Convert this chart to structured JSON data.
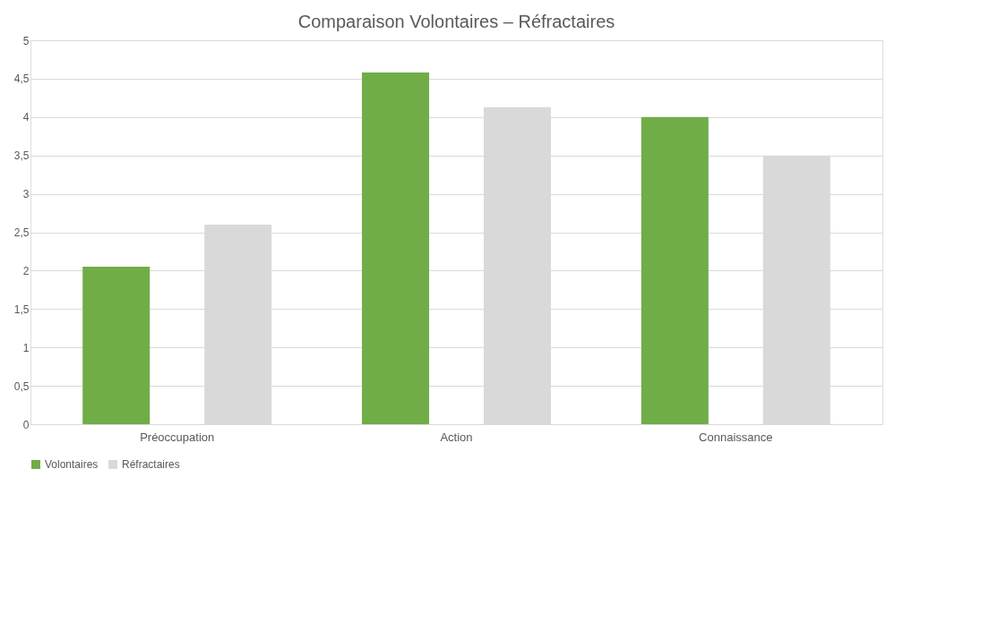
{
  "chart_data": {
    "type": "bar",
    "title": "Comparaison Volontaires – Réfractaires",
    "categories": [
      "Préoccupation",
      "Action",
      "Connaissance"
    ],
    "series": [
      {
        "name": "Volontaires",
        "color": "#70ad47",
        "values": [
          2.05,
          4.58,
          4.0
        ]
      },
      {
        "name": "Réfractaires",
        "color": "#d9d9d9",
        "values": [
          2.6,
          4.13,
          3.5
        ]
      }
    ],
    "ylim": [
      0,
      5
    ],
    "yticks": [
      0,
      {
        "value": 0.5,
        "label": "0,5"
      },
      1,
      {
        "value": 1.5,
        "label": "1,5"
      },
      2,
      {
        "value": 2.5,
        "label": "2,5"
      },
      3,
      {
        "value": 3.5,
        "label": "3,5"
      },
      4,
      {
        "value": 4.5,
        "label": "4,5"
      },
      5
    ],
    "grid": "y",
    "legend": "bottom"
  }
}
